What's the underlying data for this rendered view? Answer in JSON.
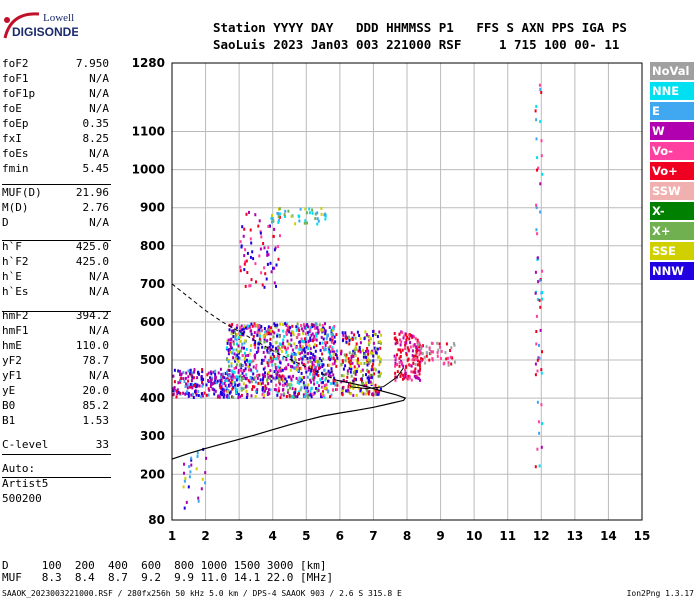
{
  "logo": {
    "line1": "Lowell",
    "line2": "DIGISONDE"
  },
  "header": {
    "line1": "Station YYYY DAY   DDD HHMMSS P1   FFS S AXN PPS IGA PS",
    "line2": "SaoLuis 2023 Jan03 003 221000 RSF     1 715 100 00- 11"
  },
  "params": [
    {
      "label": "foF2",
      "value": "7.950"
    },
    {
      "label": "foF1",
      "value": "N/A"
    },
    {
      "label": "foF1p",
      "value": "N/A"
    },
    {
      "label": "foE",
      "value": "N/A"
    },
    {
      "label": "foEp",
      "value": "0.35"
    },
    {
      "label": "fxI",
      "value": "8.25"
    },
    {
      "label": "foEs",
      "value": "N/A"
    },
    {
      "label": "fmin",
      "value": "5.45"
    },
    {
      "label": "MUF(D)",
      "value": "21.96"
    },
    {
      "label": "M(D)",
      "value": "2.76"
    },
    {
      "label": "D",
      "value": "N/A"
    },
    {
      "label": "h`F",
      "value": "425.0"
    },
    {
      "label": "h`F2",
      "value": "425.0"
    },
    {
      "label": "h`E",
      "value": "N/A"
    },
    {
      "label": "h`Es",
      "value": "N/A"
    },
    {
      "label": "hmF2",
      "value": "394.2"
    },
    {
      "label": "hmF1",
      "value": "N/A"
    },
    {
      "label": "hmE",
      "value": "110.0"
    },
    {
      "label": "yF2",
      "value": "78.7"
    },
    {
      "label": "yF1",
      "value": "N/A"
    },
    {
      "label": "yE",
      "value": "20.0"
    },
    {
      "label": "B0",
      "value": "85.2"
    },
    {
      "label": "B1",
      "value": "1.53"
    },
    {
      "label": "C-level",
      "value": "33"
    }
  ],
  "auto": {
    "line1": "Auto:",
    "line2": "Artist5",
    "line3": "500200"
  },
  "legend": [
    {
      "name": "NoVal",
      "color": "#a0a0a0"
    },
    {
      "name": "NNE",
      "color": "#00e0f0"
    },
    {
      "name": "E",
      "color": "#40a8f0"
    },
    {
      "name": "W",
      "color": "#b000b0"
    },
    {
      "name": "Vo-",
      "color": "#ff40a0"
    },
    {
      "name": "Vo+",
      "color": "#f00020"
    },
    {
      "name": "SSW",
      "color": "#f0b0b0"
    },
    {
      "name": "X-",
      "color": "#008000"
    },
    {
      "name": "X+",
      "color": "#70b050"
    },
    {
      "name": "SSE",
      "color": "#d0d000"
    },
    {
      "name": "NNW",
      "color": "#2000e0"
    }
  ],
  "footer": {
    "line1": "D     100  200  400  600  800 1000 1500 3000 [km]",
    "line2": "MUF   8.3  8.4  8.7  9.2  9.9 11.0 14.1 22.0 [MHz]",
    "line3": "SAAOK_2023003221000.RSF / 280fx256h 50 kHz 5.0 km / DPS-4 SAAOK 903 / 2.6 S 315.8 E",
    "version": "Ion2Png 1.3.17"
  },
  "chart_data": {
    "type": "scatter",
    "xlim": [
      1,
      15
    ],
    "ylim": [
      80,
      1280
    ],
    "x_ticks": [
      "1",
      "2",
      "3",
      "4",
      "5",
      "6",
      "7",
      "8",
      "9",
      "10",
      "11",
      "12",
      "13",
      "14",
      "15"
    ],
    "y_ticks": [
      "80",
      "200",
      "300",
      "400",
      "500",
      "600",
      "700",
      "800",
      "900",
      "1000",
      "1100",
      "1280"
    ],
    "grid": true,
    "profile_solid": [
      [
        1.0,
        240
      ],
      [
        1.5,
        255
      ],
      [
        2.0,
        268
      ],
      [
        2.5,
        280
      ],
      [
        3.0,
        292
      ],
      [
        3.5,
        304
      ],
      [
        4.0,
        317
      ],
      [
        4.5,
        330
      ],
      [
        5.0,
        342
      ],
      [
        5.5,
        353
      ],
      [
        6.0,
        361
      ],
      [
        6.5,
        368
      ],
      [
        7.0,
        376
      ],
      [
        7.5,
        386
      ],
      [
        7.9,
        394
      ],
      [
        7.95,
        400
      ],
      [
        7.7,
        408
      ],
      [
        7.2,
        420
      ],
      [
        6.8,
        430
      ],
      [
        6.3,
        440
      ],
      [
        5.9,
        447
      ]
    ],
    "profile_dashed": [
      [
        1.0,
        700
      ],
      [
        1.5,
        665
      ],
      [
        2.0,
        630
      ],
      [
        2.5,
        600
      ],
      [
        3.0,
        575
      ],
      [
        3.6,
        545
      ],
      [
        4.2,
        515
      ],
      [
        4.8,
        490
      ],
      [
        5.3,
        470
      ],
      [
        5.9,
        447
      ]
    ],
    "trace_right": [
      [
        6.3,
        430
      ],
      [
        6.8,
        425
      ],
      [
        7.3,
        430
      ],
      [
        7.7,
        455
      ],
      [
        7.9,
        480
      ]
    ],
    "clusters": [
      {
        "x": [
          1.0,
          2.8
        ],
        "y": [
          405,
          480
        ],
        "n": 220,
        "mix": [
          "#2000e0",
          "#b000b0",
          "#b000b0",
          "#2000e0",
          "#40a8f0",
          "#f00020"
        ]
      },
      {
        "x": [
          2.6,
          5.9
        ],
        "y": [
          405,
          600
        ],
        "n": 950,
        "mix": [
          "#2000e0",
          "#b000b0",
          "#70b050",
          "#d0d000",
          "#40a8f0",
          "#ff40a0",
          "#00e0f0",
          "#f00020",
          "#2000e0",
          "#b000b0"
        ]
      },
      {
        "x": [
          6.0,
          7.2
        ],
        "y": [
          410,
          580
        ],
        "n": 260,
        "mix": [
          "#2000e0",
          "#b000b0",
          "#f00020",
          "#70b050",
          "#d0d000"
        ]
      },
      {
        "x": [
          7.6,
          8.4
        ],
        "y": [
          450,
          580
        ],
        "n": 140,
        "mix": [
          "#f00020",
          "#ff40a0",
          "#f00020",
          "#b000b0"
        ]
      },
      {
        "x": [
          8.2,
          9.4
        ],
        "y": [
          490,
          550
        ],
        "n": 60,
        "mix": [
          "#f00020",
          "#ff40a0",
          "#a0a0a0"
        ]
      },
      {
        "x": [
          3.0,
          4.2
        ],
        "y": [
          690,
          900
        ],
        "n": 70,
        "mix": [
          "#b000b0",
          "#ff40a0",
          "#f00020",
          "#2000e0"
        ]
      },
      {
        "x": [
          3.9,
          5.6
        ],
        "y": [
          860,
          905
        ],
        "n": 45,
        "mix": [
          "#40a8f0",
          "#d0d000",
          "#70b050",
          "#00e0f0"
        ]
      },
      {
        "x": [
          1.3,
          2.0
        ],
        "y": [
          100,
          280
        ],
        "n": 25,
        "mix": [
          "#b000b0",
          "#d0d000",
          "#2000e0",
          "#40a8f0"
        ]
      },
      {
        "x": [
          11.8,
          12.0
        ],
        "y": [
          220,
          1230
        ],
        "n": 60,
        "mix": [
          "#ff40a0",
          "#40a8f0",
          "#b000b0",
          "#f00020",
          "#00e0f0"
        ]
      }
    ]
  }
}
